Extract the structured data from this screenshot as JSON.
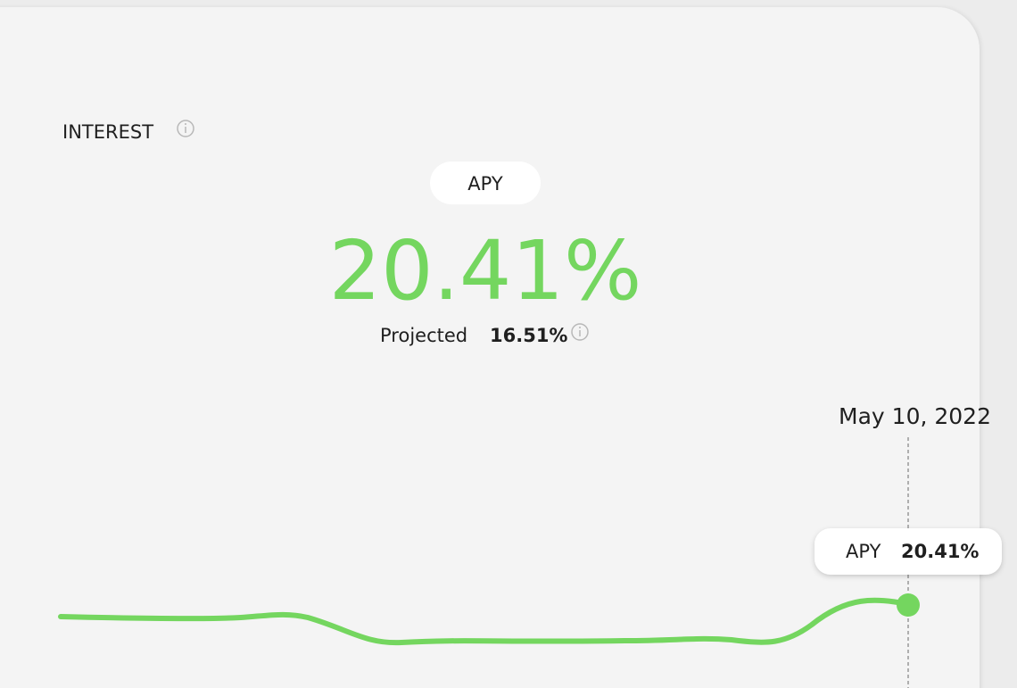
{
  "widget": {
    "title": "INTEREST",
    "tab": "APY",
    "apy_value": "20.41%",
    "projected_label": "Projected",
    "projected_value": "16.51%",
    "chart": {
      "date": "May 10, 2022",
      "tooltip_label": "APY",
      "tooltip_value": "20.41%"
    }
  }
}
